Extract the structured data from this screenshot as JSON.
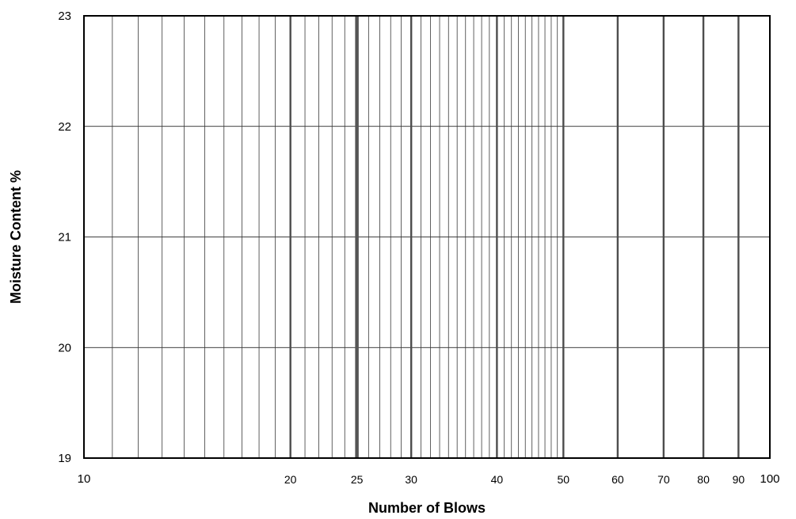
{
  "chart_data": {
    "type": "scatter",
    "title": "",
    "xlabel": "Number of Blows",
    "ylabel": "Moisture Content  %",
    "x_scale": "log",
    "xlim": [
      10,
      100
    ],
    "ylim": [
      19,
      23
    ],
    "x_tick_labels": [
      {
        "value": 10,
        "label": "10"
      },
      {
        "value": 20,
        "label": "20"
      },
      {
        "value": 25,
        "label": "25"
      },
      {
        "value": 30,
        "label": "30"
      },
      {
        "value": 40,
        "label": "40"
      },
      {
        "value": 50,
        "label": "50"
      },
      {
        "value": 60,
        "label": "60"
      },
      {
        "value": 70,
        "label": "70"
      },
      {
        "value": 80,
        "label": "80"
      },
      {
        "value": 90,
        "label": "90"
      },
      {
        "value": 100,
        "label": "100"
      }
    ],
    "y_ticks": [
      19,
      20,
      21,
      22,
      23
    ],
    "grid": true,
    "x_minor_grid_values": [
      11,
      12,
      13,
      14,
      15,
      16,
      17,
      18,
      19,
      21,
      22,
      23,
      24,
      26,
      27,
      28,
      29,
      31,
      32,
      33,
      34,
      35,
      36,
      37,
      38,
      39,
      41,
      42,
      43,
      44,
      45,
      46,
      47,
      48,
      49
    ],
    "x_major_grid_values": [
      20,
      30,
      40,
      50,
      60,
      70,
      80,
      90
    ],
    "x_highlight_value": 25,
    "series": []
  }
}
